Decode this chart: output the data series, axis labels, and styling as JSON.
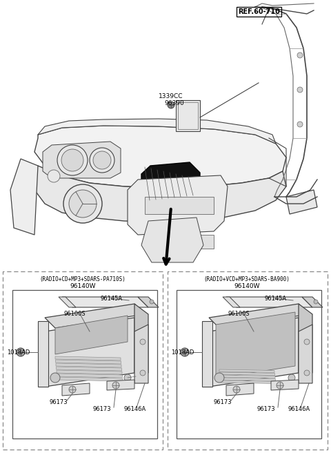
{
  "bg_color": "#ffffff",
  "fig_width": 4.8,
  "fig_height": 6.56,
  "dpi": 100,
  "ref_label": "REF.60-710",
  "part_1339CC": "1339CC",
  "part_96390": "96390",
  "left_title1": "(RADIO+CD+MP3+SDARS-PA710S)",
  "left_title2": "96140W",
  "right_title1": "(RADIO+VCD+MP3+SDARS-BA900)",
  "right_title2": "96140W",
  "label_96145A": "96145A",
  "label_96100S": "96100S",
  "label_1018AD": "1018AD",
  "label_96173": "96173",
  "label_96146A": "96146A"
}
